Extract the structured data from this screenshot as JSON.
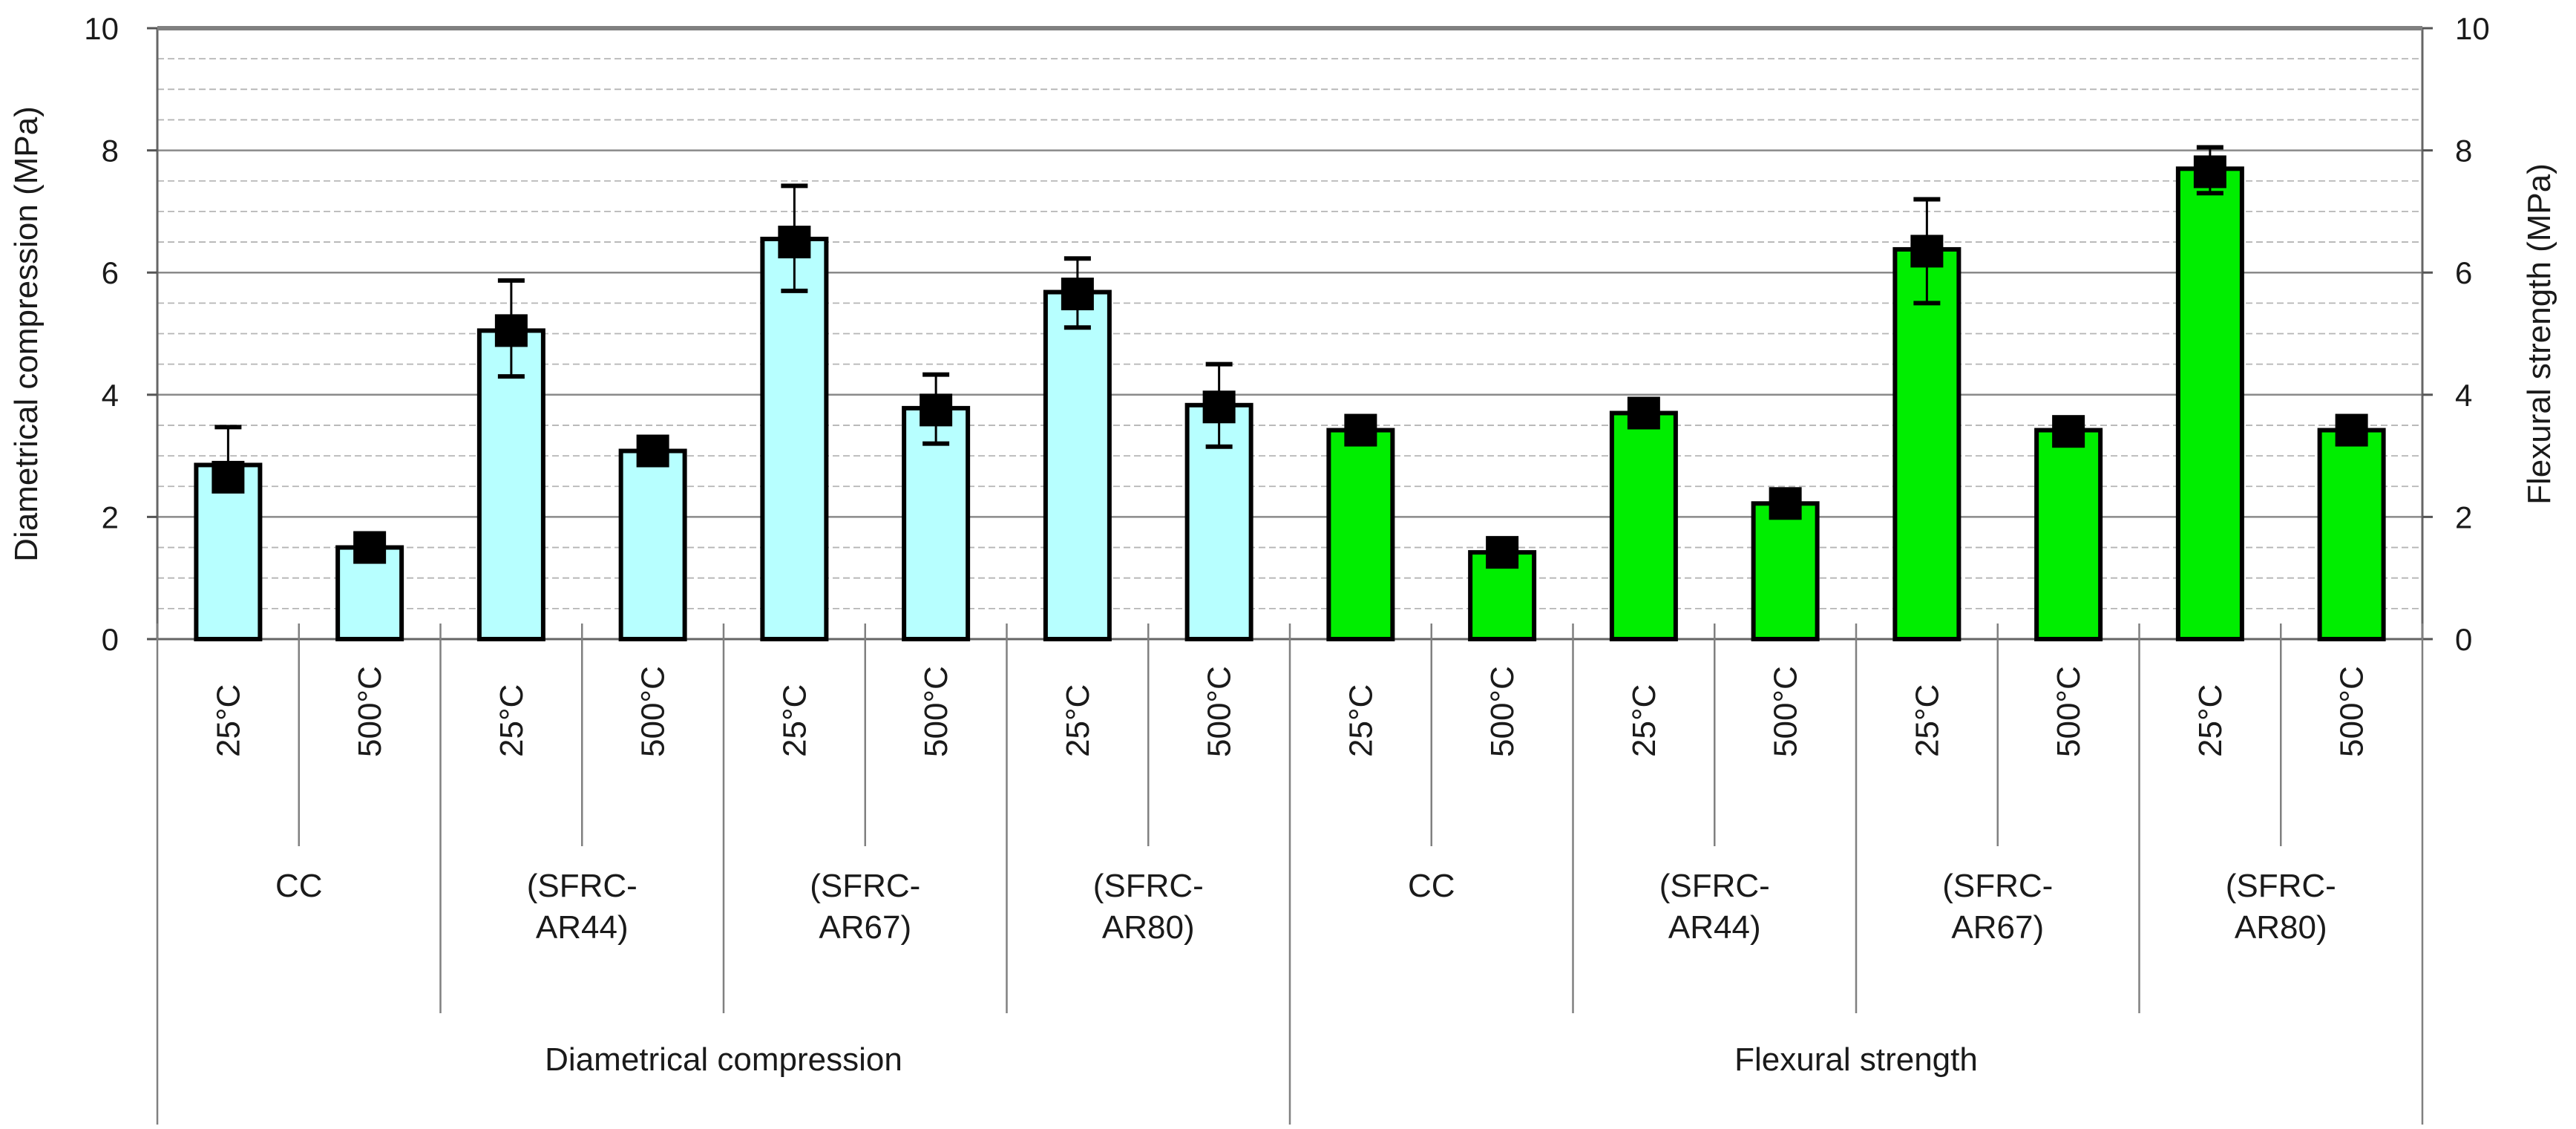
{
  "chart_data": {
    "type": "bar",
    "title": "",
    "ylabel_left": "Diametrical compression (MPa)",
    "ylabel_right": "Flexural strength (MPa)",
    "ylim": [
      0,
      10
    ],
    "yticks": [
      "0",
      "2",
      "4",
      "6",
      "8",
      "10"
    ],
    "groups": [
      {
        "name": "Diametrical compression",
        "color": "#b7ffff"
      },
      {
        "name": "Flexural strength",
        "color": "#00ee00"
      }
    ],
    "mixes": [
      "CC",
      "(SFRC-AR44)",
      "(SFRC-AR67)",
      "(SFRC-AR80)",
      "CC",
      "(SFRC-AR44)",
      "(SFRC-AR67)",
      "(SFRC-AR80)"
    ],
    "temperatures": [
      "25°C",
      "500°C"
    ],
    "bars": [
      {
        "group": 0,
        "mix": 0,
        "temp": "25°C",
        "value": 2.85,
        "mean": 2.65,
        "err_low": 2.6,
        "err_high": 3.47
      },
      {
        "group": 0,
        "mix": 0,
        "temp": "500°C",
        "value": 1.5,
        "mean": 1.5,
        "err_low": 1.45,
        "err_high": 1.55
      },
      {
        "group": 0,
        "mix": 1,
        "temp": "25°C",
        "value": 5.05,
        "mean": 5.05,
        "err_low": 4.3,
        "err_high": 5.87
      },
      {
        "group": 0,
        "mix": 1,
        "temp": "500°C",
        "value": 3.08,
        "mean": 3.08,
        "err_low": 3.0,
        "err_high": 3.15
      },
      {
        "group": 0,
        "mix": 2,
        "temp": "25°C",
        "value": 6.55,
        "mean": 6.5,
        "err_low": 5.7,
        "err_high": 7.42
      },
      {
        "group": 0,
        "mix": 2,
        "temp": "500°C",
        "value": 3.78,
        "mean": 3.75,
        "err_low": 3.2,
        "err_high": 4.33
      },
      {
        "group": 0,
        "mix": 3,
        "temp": "25°C",
        "value": 5.68,
        "mean": 5.65,
        "err_low": 5.1,
        "err_high": 6.23
      },
      {
        "group": 0,
        "mix": 3,
        "temp": "500°C",
        "value": 3.83,
        "mean": 3.8,
        "err_low": 3.15,
        "err_high": 4.5
      },
      {
        "group": 1,
        "mix": 4,
        "temp": "25°C",
        "value": 3.42,
        "mean": 3.42,
        "err_low": 3.35,
        "err_high": 3.5
      },
      {
        "group": 1,
        "mix": 4,
        "temp": "500°C",
        "value": 1.42,
        "mean": 1.42,
        "err_low": 1.38,
        "err_high": 1.46
      },
      {
        "group": 1,
        "mix": 5,
        "temp": "25°C",
        "value": 3.7,
        "mean": 3.7,
        "err_low": 3.62,
        "err_high": 3.78
      },
      {
        "group": 1,
        "mix": 5,
        "temp": "500°C",
        "value": 2.22,
        "mean": 2.22,
        "err_low": 2.15,
        "err_high": 2.3
      },
      {
        "group": 1,
        "mix": 6,
        "temp": "25°C",
        "value": 6.38,
        "mean": 6.35,
        "err_low": 5.5,
        "err_high": 7.2
      },
      {
        "group": 1,
        "mix": 6,
        "temp": "500°C",
        "value": 3.42,
        "mean": 3.4,
        "err_low": 3.33,
        "err_high": 3.5
      },
      {
        "group": 1,
        "mix": 7,
        "temp": "25°C",
        "value": 7.7,
        "mean": 7.65,
        "err_low": 7.3,
        "err_high": 8.05
      },
      {
        "group": 1,
        "mix": 7,
        "temp": "500°C",
        "value": 3.42,
        "mean": 3.42,
        "err_low": 3.35,
        "err_high": 3.5
      }
    ]
  }
}
